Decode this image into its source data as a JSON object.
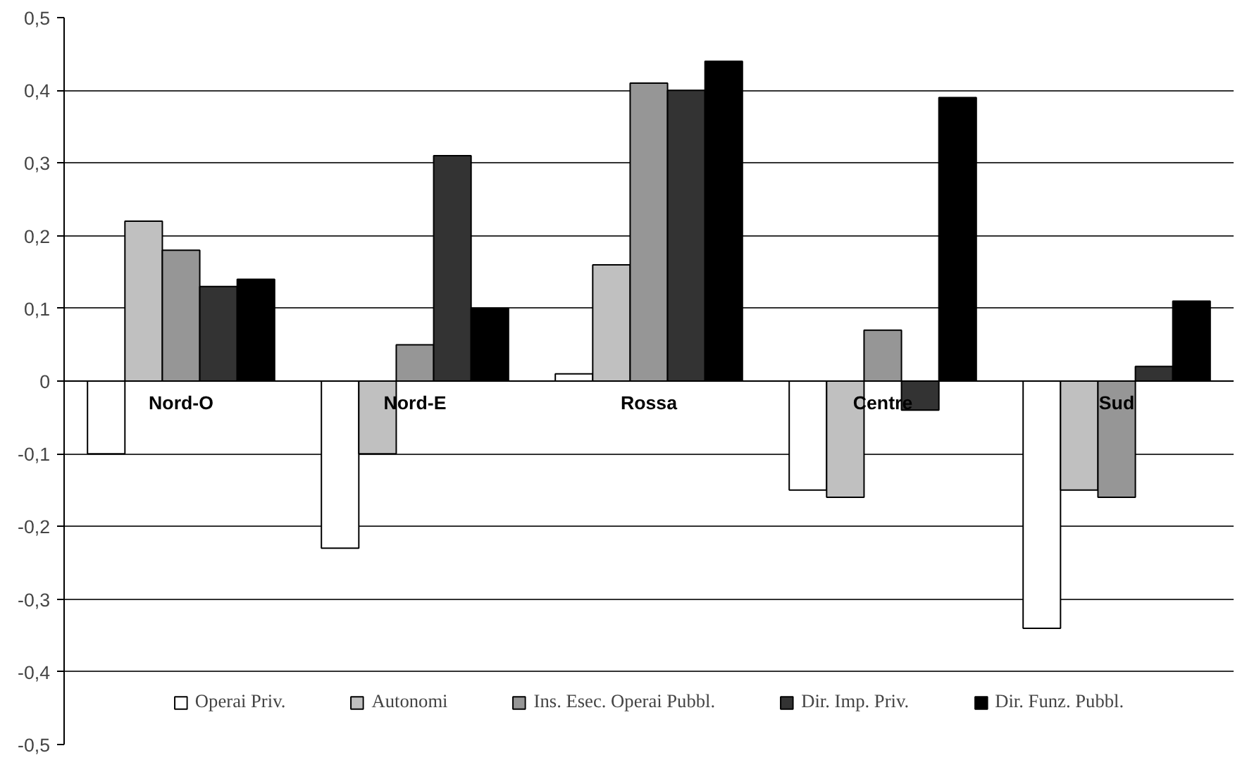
{
  "chart_data": {
    "type": "bar",
    "categories": [
      "Nord-O",
      "Nord-E",
      "Rossa",
      "Centre",
      "Sud"
    ],
    "series": [
      {
        "name": "Operai Priv.",
        "color": "#ffffff",
        "values": [
          -0.1,
          -0.23,
          0.01,
          -0.15,
          -0.34
        ]
      },
      {
        "name": "Autonomi",
        "color": "#c0c0c0",
        "values": [
          0.22,
          -0.1,
          0.16,
          -0.16,
          -0.15
        ]
      },
      {
        "name": "Ins. Esec. Operai Pubbl.",
        "color": "#969696",
        "values": [
          0.18,
          0.05,
          0.41,
          0.07,
          -0.16
        ]
      },
      {
        "name": "Dir. Imp. Priv.",
        "color": "#333333",
        "values": [
          0.13,
          0.31,
          0.4,
          -0.04,
          0.02
        ]
      },
      {
        "name": "Dir. Funz. Pubbl.",
        "color": "#000000",
        "values": [
          0.14,
          0.1,
          0.44,
          0.39,
          0.11
        ]
      }
    ],
    "ylim": [
      -0.5,
      0.5
    ],
    "yticks": [
      {
        "value": -0.5,
        "label": "-0,5"
      },
      {
        "value": -0.4,
        "label": "-0,4"
      },
      {
        "value": -0.3,
        "label": "-0,3"
      },
      {
        "value": -0.2,
        "label": "-0,2"
      },
      {
        "value": -0.1,
        "label": "-0,1"
      },
      0,
      {
        "value": 0.1,
        "label": "0,1"
      },
      {
        "value": 0.2,
        "label": "0,2"
      },
      {
        "value": 0.3,
        "label": "0,3"
      },
      {
        "value": 0.4,
        "label": "0,4"
      },
      {
        "value": 0.5,
        "label": "0,5"
      }
    ],
    "grid": "y",
    "legend": "bottom"
  }
}
